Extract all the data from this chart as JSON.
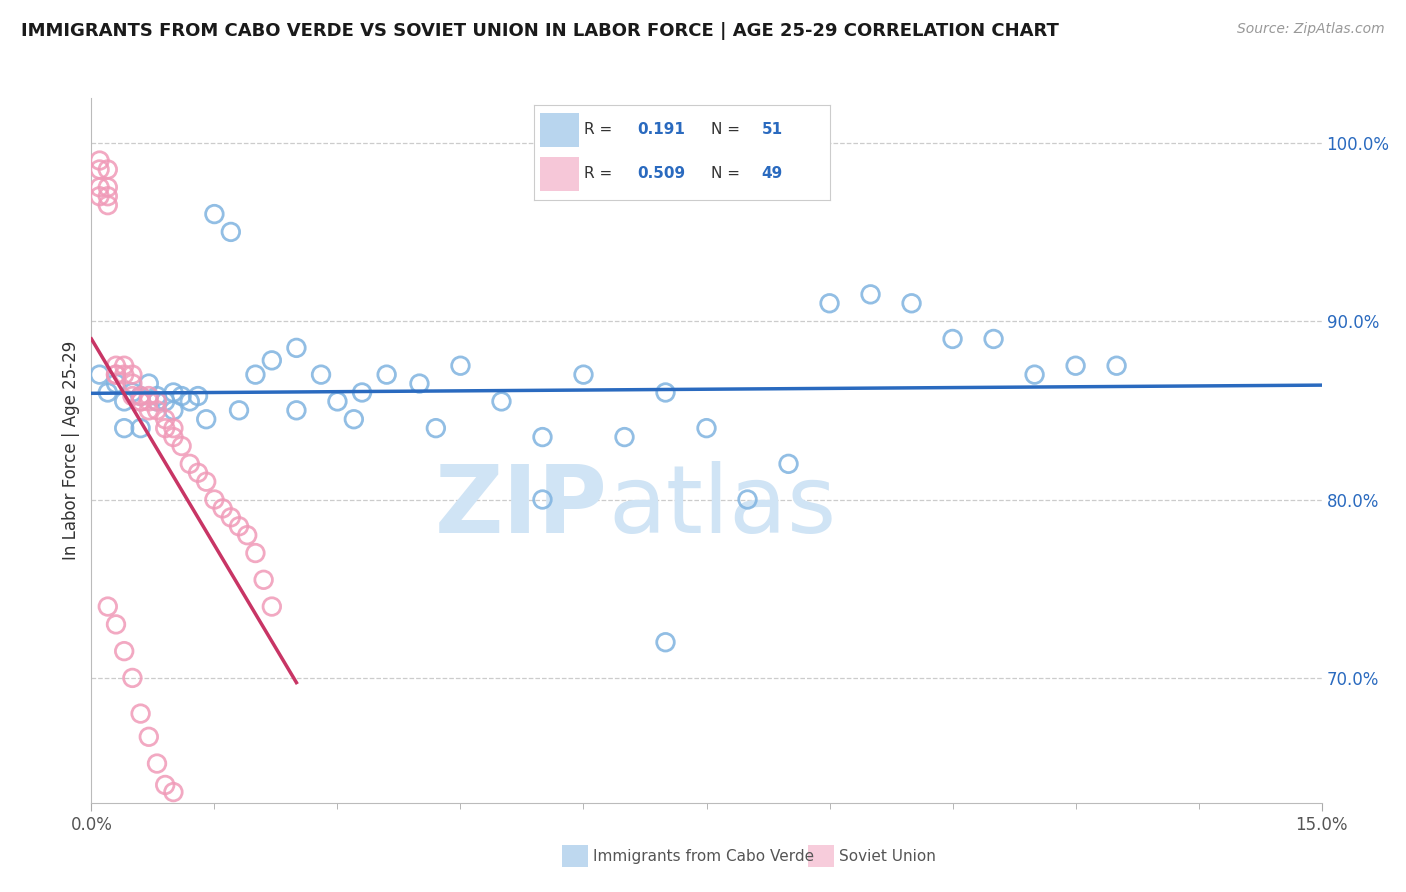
{
  "title": "IMMIGRANTS FROM CABO VERDE VS SOVIET UNION IN LABOR FORCE | AGE 25-29 CORRELATION CHART",
  "source": "Source: ZipAtlas.com",
  "ylabel": "In Labor Force | Age 25-29",
  "xlim": [
    0.0,
    0.15
  ],
  "ylim": [
    0.63,
    1.025
  ],
  "xtick_vals": [
    0.0,
    0.15
  ],
  "xtick_labels": [
    "0.0%",
    "15.0%"
  ],
  "ytick_vals": [
    0.7,
    0.8,
    0.9,
    1.0
  ],
  "ytick_labels": [
    "70.0%",
    "80.0%",
    "90.0%",
    "100.0%"
  ],
  "cv_color": "#7fb3e0",
  "su_color": "#f09ab8",
  "cv_line_color": "#2a6abf",
  "su_line_color": "#c83565",
  "watermark_zip": "ZIP",
  "watermark_atlas": "atlas",
  "watermark_color": "#d0e4f5",
  "bottom_label1": "Immigrants from Cabo Verde",
  "bottom_label2": "Soviet Union",
  "legend_r1": "0.191",
  "legend_n1": "51",
  "legend_r2": "0.509",
  "legend_n2": "49",
  "blue_text_color": "#2a6abf",
  "dark_text_color": "#333333",
  "cv_x": [
    0.001,
    0.002,
    0.003,
    0.004,
    0.005,
    0.006,
    0.007,
    0.008,
    0.009,
    0.01,
    0.011,
    0.012,
    0.013,
    0.015,
    0.017,
    0.02,
    0.022,
    0.025,
    0.028,
    0.03,
    0.033,
    0.036,
    0.04,
    0.045,
    0.05,
    0.055,
    0.06,
    0.065,
    0.07,
    0.075,
    0.08,
    0.085,
    0.09,
    0.095,
    0.1,
    0.105,
    0.11,
    0.115,
    0.12,
    0.125,
    0.004,
    0.006,
    0.008,
    0.01,
    0.014,
    0.018,
    0.025,
    0.032,
    0.042,
    0.055,
    0.07
  ],
  "cv_y": [
    0.87,
    0.86,
    0.865,
    0.855,
    0.86,
    0.858,
    0.865,
    0.858,
    0.855,
    0.86,
    0.858,
    0.855,
    0.858,
    0.96,
    0.95,
    0.87,
    0.878,
    0.885,
    0.87,
    0.855,
    0.86,
    0.87,
    0.865,
    0.875,
    0.855,
    0.835,
    0.87,
    0.835,
    0.86,
    0.84,
    0.8,
    0.82,
    0.91,
    0.915,
    0.91,
    0.89,
    0.89,
    0.87,
    0.875,
    0.875,
    0.84,
    0.84,
    0.855,
    0.85,
    0.845,
    0.85,
    0.85,
    0.845,
    0.84,
    0.8,
    0.72
  ],
  "su_x": [
    0.001,
    0.001,
    0.001,
    0.001,
    0.002,
    0.002,
    0.002,
    0.002,
    0.003,
    0.003,
    0.003,
    0.004,
    0.004,
    0.005,
    0.005,
    0.005,
    0.006,
    0.006,
    0.006,
    0.007,
    0.007,
    0.007,
    0.008,
    0.008,
    0.009,
    0.009,
    0.01,
    0.01,
    0.011,
    0.012,
    0.013,
    0.014,
    0.015,
    0.016,
    0.017,
    0.018,
    0.019,
    0.02,
    0.021,
    0.022,
    0.002,
    0.003,
    0.004,
    0.005,
    0.006,
    0.007,
    0.008,
    0.009,
    0.01
  ],
  "su_y": [
    0.99,
    0.985,
    0.975,
    0.97,
    0.985,
    0.975,
    0.97,
    0.965,
    0.87,
    0.875,
    0.87,
    0.87,
    0.875,
    0.87,
    0.865,
    0.858,
    0.858,
    0.855,
    0.855,
    0.858,
    0.855,
    0.85,
    0.855,
    0.85,
    0.845,
    0.84,
    0.84,
    0.835,
    0.83,
    0.82,
    0.815,
    0.81,
    0.8,
    0.795,
    0.79,
    0.785,
    0.78,
    0.77,
    0.755,
    0.74,
    0.74,
    0.73,
    0.715,
    0.7,
    0.68,
    0.667,
    0.652,
    0.64,
    0.636
  ]
}
